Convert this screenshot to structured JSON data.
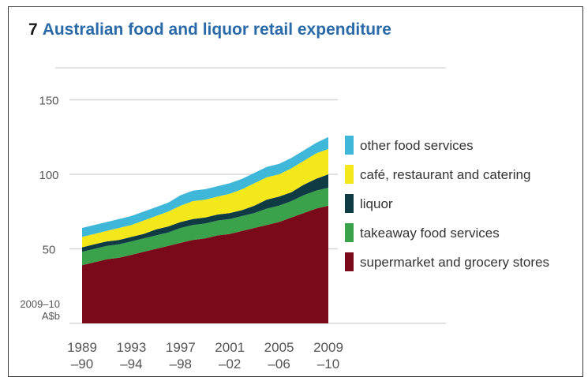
{
  "figure": {
    "number": "7",
    "title": "Australian food and liquor retail expenditure"
  },
  "chart_data": {
    "type": "area",
    "stacked": true,
    "title": "Australian food and liquor retail expenditure",
    "ylabel": "2009–10 A$b",
    "ylim": [
      0,
      150
    ],
    "yticks": [
      50,
      100,
      150
    ],
    "x": [
      1989,
      1990,
      1991,
      1992,
      1993,
      1994,
      1995,
      1996,
      1997,
      1998,
      1999,
      2000,
      2001,
      2002,
      2003,
      2004,
      2005,
      2006,
      2007,
      2008,
      2009
    ],
    "x_tick_labels": [
      {
        "x": 1989,
        "top": "1989",
        "bottom": "–90"
      },
      {
        "x": 1993,
        "top": "1993",
        "bottom": "–94"
      },
      {
        "x": 1997,
        "top": "1997",
        "bottom": "–98"
      },
      {
        "x": 2001,
        "top": "2001",
        "bottom": "–02"
      },
      {
        "x": 2005,
        "top": "2005",
        "bottom": "–06"
      },
      {
        "x": 2009,
        "top": "2009",
        "bottom": "–10"
      }
    ],
    "legend_position": "right",
    "series": [
      {
        "name": "supermarket and grocery stores",
        "color": "#7a0a1a",
        "values": [
          39,
          41,
          43,
          44,
          46,
          48,
          50,
          52,
          54,
          56,
          57,
          59,
          60,
          62,
          64,
          66,
          68,
          71,
          74,
          77,
          79
        ]
      },
      {
        "name": "takeaway food services",
        "color": "#3aa24a",
        "values": [
          9,
          9,
          9,
          9,
          9,
          9,
          9,
          9,
          10,
          10,
          10,
          10,
          10,
          10,
          10,
          11,
          11,
          11,
          12,
          12,
          12
        ]
      },
      {
        "name": "liquor",
        "color": "#0f3c44",
        "values": [
          3,
          3,
          3,
          3,
          3,
          3,
          4,
          4,
          4,
          4,
          4,
          4,
          4,
          4,
          5,
          6,
          6,
          6,
          7,
          8,
          9
        ]
      },
      {
        "name": "café, restaurant and catering",
        "color": "#f4e81a",
        "values": [
          7,
          7,
          7,
          8,
          8,
          9,
          9,
          10,
          11,
          12,
          12,
          12,
          13,
          14,
          15,
          15,
          15,
          16,
          16,
          17,
          17
        ]
      },
      {
        "name": "other food services",
        "color": "#3fb7d8",
        "values": [
          6,
          6,
          6,
          6,
          6,
          6,
          6,
          6,
          7,
          7,
          7,
          7,
          7,
          7,
          7,
          7,
          7,
          7,
          7,
          7,
          8
        ]
      }
    ]
  }
}
